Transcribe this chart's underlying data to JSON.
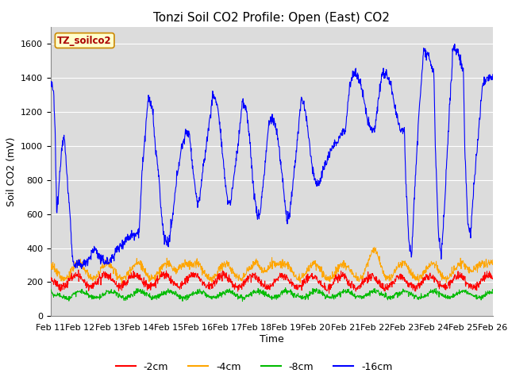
{
  "title": "Tonzi Soil CO2 Profile: Open (East) CO2",
  "ylabel": "Soil CO2 (mV)",
  "xlabel": "Time",
  "ylim": [
    0,
    1700
  ],
  "yticks": [
    0,
    200,
    400,
    600,
    800,
    1000,
    1200,
    1400,
    1600
  ],
  "x_tick_labels": [
    "Feb 11",
    "Feb 12",
    "Feb 13",
    "Feb 14",
    "Feb 15",
    "Feb 16",
    "Feb 17",
    "Feb 18",
    "Feb 19",
    "Feb 20",
    "Feb 21",
    "Feb 22",
    "Feb 23",
    "Feb 24",
    "Feb 25",
    "Feb 26"
  ],
  "colors": {
    "neg2cm": "#ff0000",
    "neg4cm": "#ffa500",
    "neg8cm": "#00bb00",
    "neg16cm": "#0000ff"
  },
  "legend_labels": [
    "-2cm",
    "-4cm",
    "-8cm",
    "-16cm"
  ],
  "legend_colors": [
    "#ff0000",
    "#ffa500",
    "#00bb00",
    "#0000ff"
  ],
  "watermark_text": "TZ_soilco2",
  "watermark_bg": "#ffffcc",
  "watermark_border": "#cc8800",
  "watermark_text_color": "#aa0000",
  "plot_bg": "#dcdcdc",
  "fig_bg": "#ffffff",
  "grid_color": "#ffffff",
  "title_fontsize": 11,
  "axis_fontsize": 9,
  "tick_fontsize": 8,
  "legend_fontsize": 9
}
